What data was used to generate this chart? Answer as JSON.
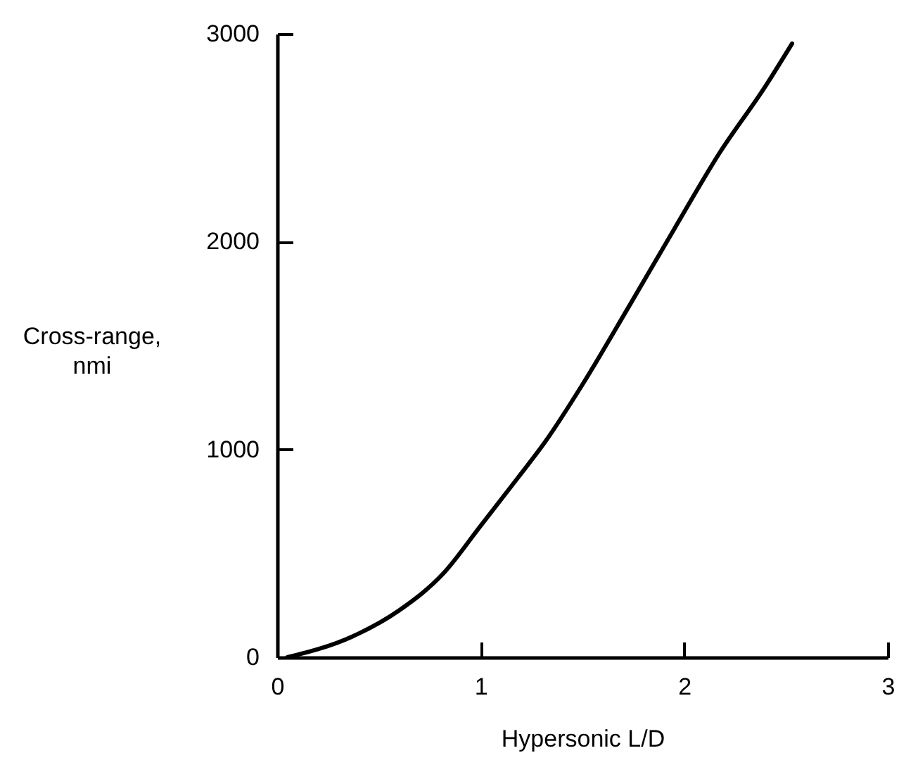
{
  "chart_data": {
    "type": "line",
    "xlabel": "Hypersonic L/D",
    "ylabel": "Cross-range,\nnmi",
    "x": [
      0.05,
      0.37,
      0.6,
      0.82,
      1.0,
      1.18,
      1.32,
      1.5,
      1.72,
      1.95,
      2.17,
      2.4,
      2.53
    ],
    "series": [
      {
        "color": "#000000",
        "values": [
          0,
          100,
          226,
          407,
          633,
          860,
          1041,
          1312,
          1674,
          2059,
          2421,
          2749,
          2953
        ]
      }
    ],
    "xlim": [
      0,
      3
    ],
    "xticks": [
      0,
      1,
      2,
      3
    ],
    "ylim": [
      0,
      3000
    ],
    "yticks": [
      0,
      1000,
      2000,
      3000
    ],
    "grid": false,
    "legend": false,
    "marker": "none",
    "line_style": "solid"
  }
}
